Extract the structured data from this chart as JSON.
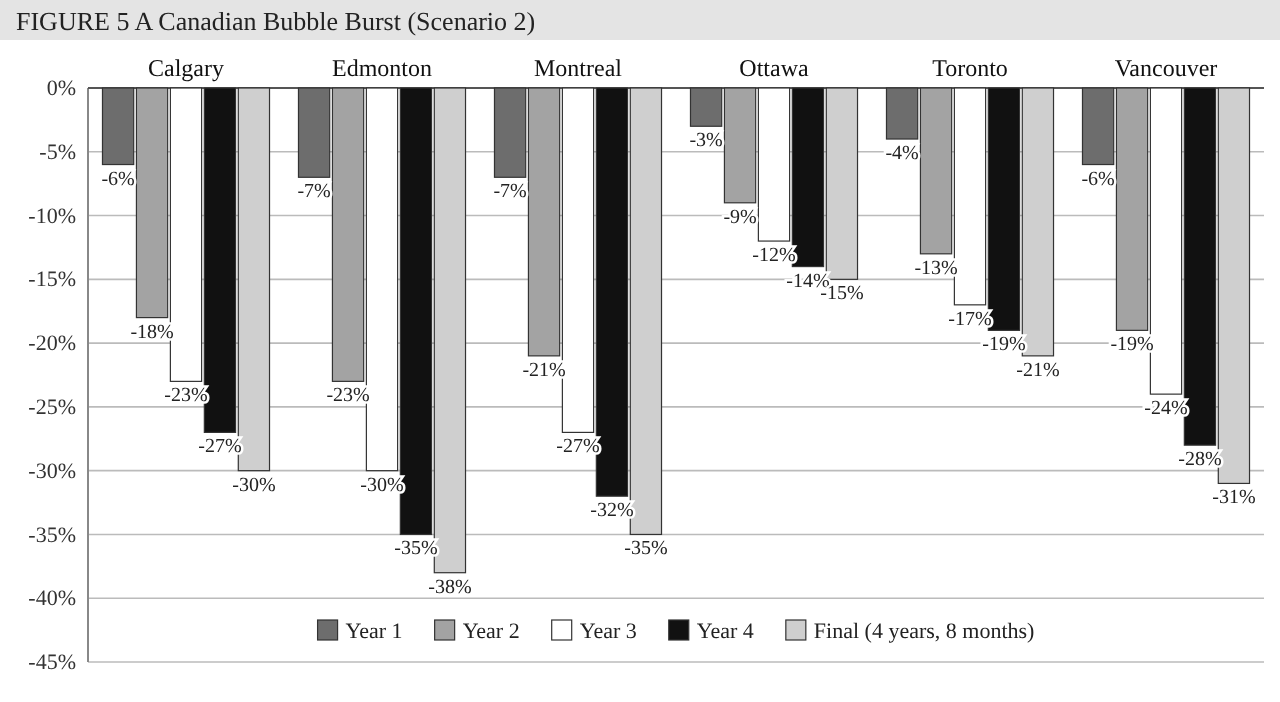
{
  "chart_data": {
    "type": "bar",
    "title": "FIGURE 5 A Canadian Bubble Burst (Scenario 2)",
    "categories": [
      "Calgary",
      "Edmonton",
      "Montreal",
      "Ottawa",
      "Toronto",
      "Vancouver"
    ],
    "series": [
      {
        "name": "Year 1",
        "color": "#6d6d6d",
        "values": [
          -6,
          -7,
          -7,
          -3,
          -4,
          -6
        ],
        "value_labels": [
          "-6%",
          "-7%",
          "-7%",
          "-3%",
          "-4%",
          "-6%"
        ]
      },
      {
        "name": "Year 2",
        "color": "#a3a3a3",
        "values": [
          -18,
          -23,
          -21,
          -9,
          -13,
          -19
        ],
        "value_labels": [
          "-18%",
          "-23%",
          "-21%",
          "-9%",
          "-13%",
          "-19%"
        ]
      },
      {
        "name": "Year 3",
        "color": "#ffffff",
        "values": [
          -23,
          -30,
          -27,
          -12,
          -17,
          -24
        ],
        "value_labels": [
          "-23%",
          "-30%",
          "-27%",
          "-12%",
          "-17%",
          "-24%"
        ]
      },
      {
        "name": "Year 4",
        "color": "#111111",
        "values": [
          -27,
          -35,
          -32,
          -14,
          -19,
          -28
        ],
        "value_labels": [
          "-27%",
          "-35%",
          "-32%",
          "-14%",
          "-19%",
          "-28%"
        ]
      },
      {
        "name": "Final (4 years, 8 months)",
        "color": "#cfcfcf",
        "values": [
          -30,
          -38,
          -35,
          -15,
          -21,
          -31
        ],
        "value_labels": [
          "-30%",
          "-38%",
          "-35%",
          "-15%",
          "-21%",
          "-31%"
        ]
      }
    ],
    "ylim": [
      -45,
      0
    ],
    "yticks": [
      {
        "value": 0,
        "label": "0%"
      },
      {
        "value": -5,
        "label": "-5%"
      },
      {
        "value": -10,
        "label": "-10%"
      },
      {
        "value": -15,
        "label": "-15%"
      },
      {
        "value": -20,
        "label": "-20%"
      },
      {
        "value": -25,
        "label": "-25%"
      },
      {
        "value": -30,
        "label": "-30%"
      },
      {
        "value": -35,
        "label": "-35%"
      },
      {
        "value": -40,
        "label": "-40%"
      },
      {
        "value": -45,
        "label": "-45%"
      }
    ],
    "grid": "y",
    "legend": "bottom"
  }
}
